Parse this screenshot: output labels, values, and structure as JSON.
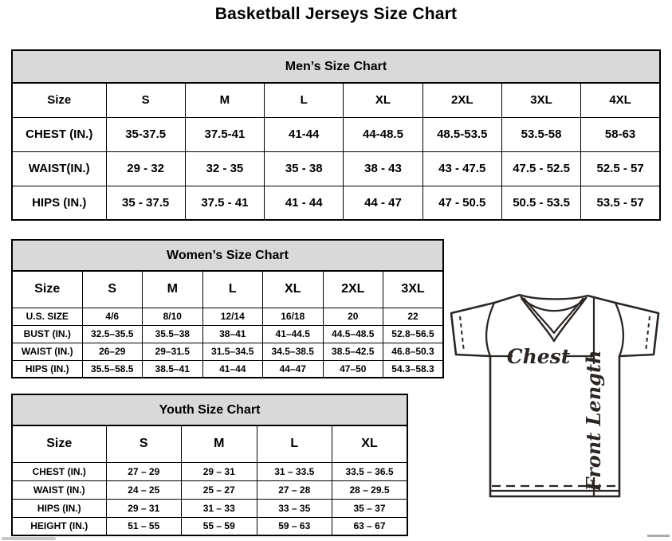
{
  "page": {
    "title": "Basketball Jerseys Size Chart"
  },
  "men": {
    "title": "Men’s Size Chart",
    "corner_label": "Size",
    "sizes": [
      "S",
      "M",
      "L",
      "XL",
      "2XL",
      "3XL",
      "4XL"
    ],
    "rows": [
      {
        "label": "CHEST (IN.)",
        "values": [
          "35-37.5",
          "37.5-41",
          "41-44",
          "44-48.5",
          "48.5-53.5",
          "53.5-58",
          "58-63"
        ]
      },
      {
        "label": "WAIST(IN.)",
        "values": [
          "29 - 32",
          "32 - 35",
          "35 - 38",
          "38 - 43",
          "43 - 47.5",
          "47.5 - 52.5",
          "52.5 - 57"
        ]
      },
      {
        "label": "HIPS (IN.)",
        "values": [
          "35 - 37.5",
          "37.5 - 41",
          "41 - 44",
          "44 - 47",
          "47 - 50.5",
          "50.5 - 53.5",
          "53.5 - 57"
        ]
      }
    ]
  },
  "women": {
    "title": "Women’s Size Chart",
    "corner_label": "Size",
    "sizes": [
      "S",
      "M",
      "L",
      "XL",
      "2XL",
      "3XL"
    ],
    "rows": [
      {
        "label": "U.S. SIZE",
        "values": [
          "4/6",
          "8/10",
          "12/14",
          "16/18",
          "20",
          "22"
        ]
      },
      {
        "label": "BUST (IN.)",
        "values": [
          "32.5–35.5",
          "35.5–38",
          "38–41",
          "41–44.5",
          "44.5–48.5",
          "52.8–56.5"
        ]
      },
      {
        "label": "WAIST (IN.)",
        "values": [
          "26–29",
          "29–31.5",
          "31.5–34.5",
          "34.5–38.5",
          "38.5–42.5",
          "46.8–50.3"
        ]
      },
      {
        "label": "HIPS (IN.)",
        "values": [
          "35.5–58.5",
          "38.5–41",
          "41–44",
          "44–47",
          "47–50",
          "54.3–58.3"
        ]
      }
    ]
  },
  "youth": {
    "title": "Youth Size Chart",
    "corner_label": "Size",
    "sizes": [
      "S",
      "M",
      "L",
      "XL"
    ],
    "rows": [
      {
        "label": "CHEST (IN.)",
        "values": [
          "27 – 29",
          "29 – 31",
          "31 – 33.5",
          "33.5 – 36.5"
        ]
      },
      {
        "label": "WAIST (IN.)",
        "values": [
          "24 – 25",
          "25 – 27",
          "27 – 28",
          "28 – 29.5"
        ]
      },
      {
        "label": "HIPS (IN.)",
        "values": [
          "29 – 31",
          "31 – 33",
          "33 – 35",
          "35 – 37"
        ]
      },
      {
        "label": "HEIGHT (IN.)",
        "values": [
          "51 – 55",
          "55 – 59",
          "59 – 63",
          "63 – 67"
        ]
      }
    ]
  },
  "diagram": {
    "chest_label": "Chest",
    "front_length_label": "Front Length",
    "line_color": "#2b2523"
  },
  "colors": {
    "table_header_bg": "#d9d9d9",
    "border": "#000000"
  }
}
